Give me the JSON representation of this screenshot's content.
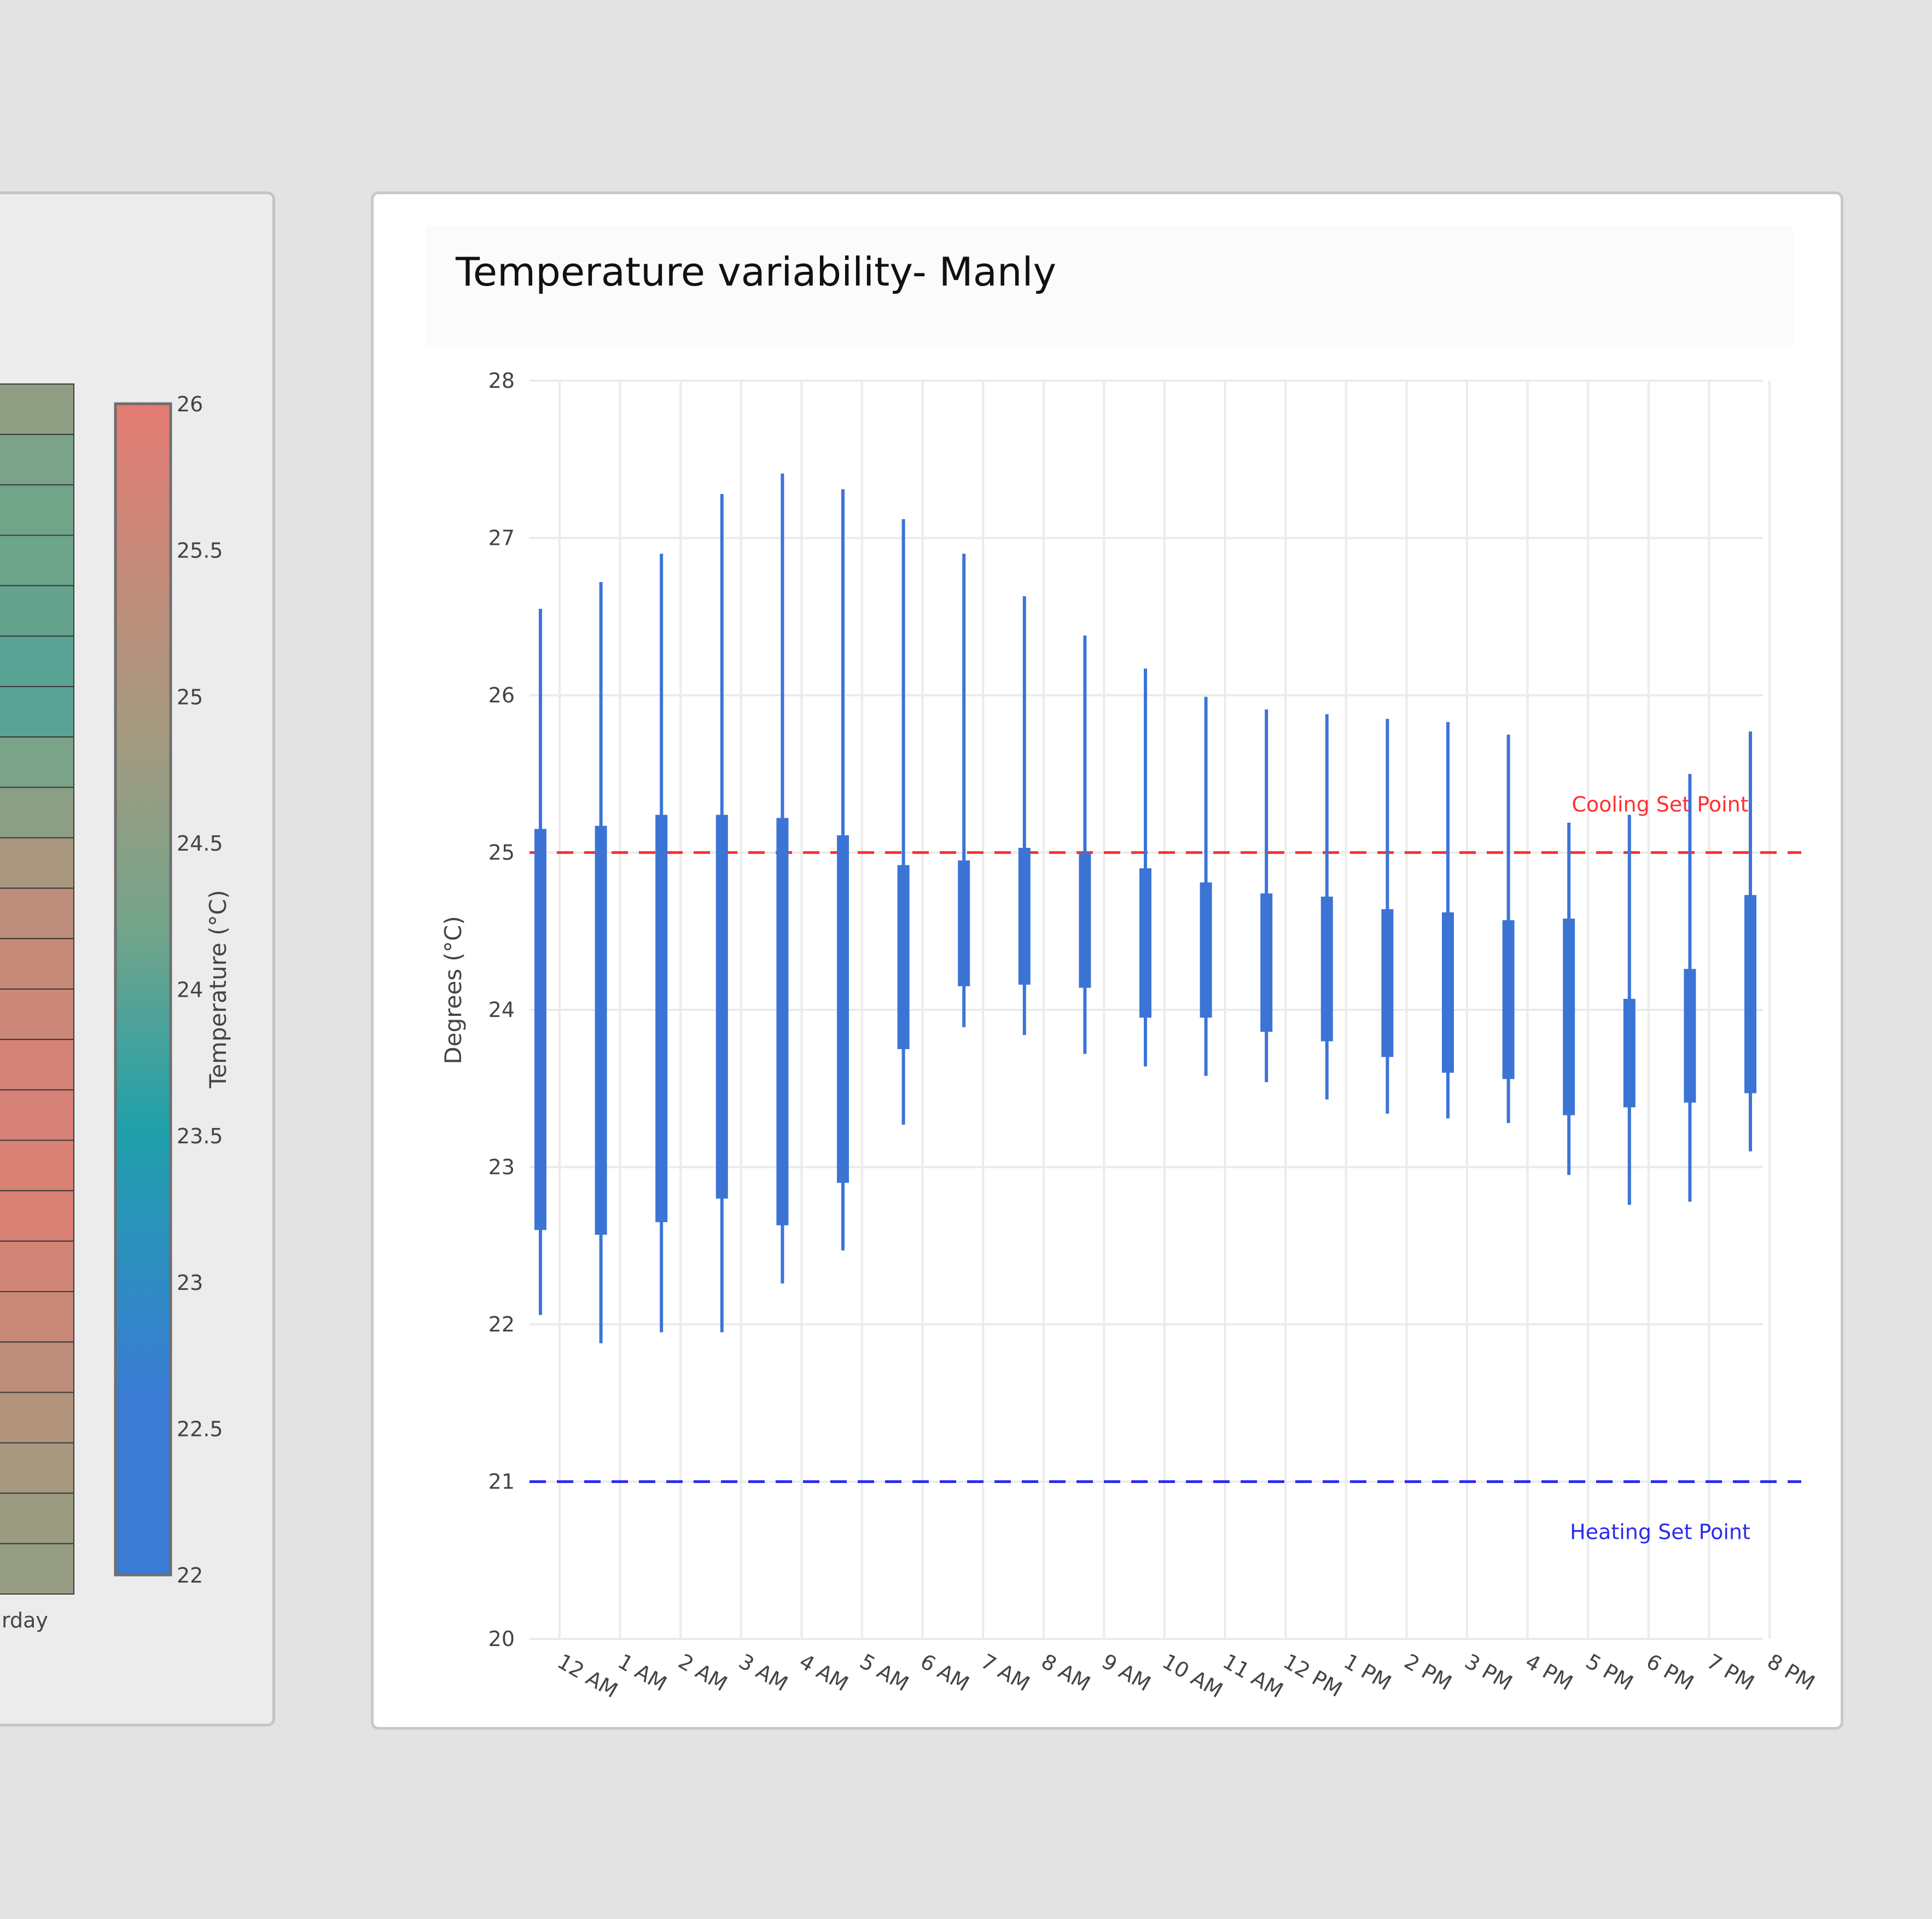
{
  "left_panel": {
    "partial_label": "rday",
    "colorbar": {
      "title": "Temperature (°C)",
      "ticks": [
        22,
        22.5,
        23,
        23.5,
        24,
        24.5,
        25,
        25.5,
        26
      ],
      "min": 22,
      "max": 26,
      "colorscale": [
        {
          "t": 0.0,
          "color": "#3a7bd5"
        },
        {
          "t": 0.15,
          "color": "#3a7bd5"
        },
        {
          "t": 0.38,
          "color": "#20a0ab"
        },
        {
          "t": 0.55,
          "color": "#72a48a"
        },
        {
          "t": 0.72,
          "color": "#a59a80"
        },
        {
          "t": 1.0,
          "color": "#e57b73"
        }
      ]
    },
    "heatmap_cells": [
      24.6,
      24.3,
      24.2,
      24.15,
      24.1,
      24.0,
      24.0,
      24.3,
      24.55,
      24.95,
      25.3,
      25.45,
      25.55,
      25.7,
      25.75,
      25.8,
      25.8,
      25.65,
      25.5,
      25.3,
      25.1,
      24.9,
      24.75,
      24.7
    ]
  },
  "chart_data": {
    "type": "box",
    "title": "Temperature variability- Manly",
    "ylabel": "Degrees (°C)",
    "ylim": [
      20,
      28
    ],
    "yticks": [
      20,
      21,
      22,
      23,
      24,
      25,
      26,
      27,
      28
    ],
    "grid": true,
    "color": "#3c74d6",
    "categories": [
      "12 AM",
      "1 AM",
      "2 AM",
      "3 AM",
      "4 AM",
      "5 AM",
      "6 AM",
      "7 AM",
      "8 AM",
      "9 AM",
      "10 AM",
      "11 AM",
      "12 PM",
      "1 PM",
      "2 PM",
      "3 PM",
      "4 PM",
      "5 PM",
      "6 PM",
      "7 PM",
      "8 PM"
    ],
    "boxes": [
      {
        "min": 22.06,
        "q1": 22.6,
        "q3": 25.15,
        "max": 26.55
      },
      {
        "min": 21.88,
        "q1": 22.57,
        "q3": 25.17,
        "max": 26.72
      },
      {
        "min": 21.95,
        "q1": 22.65,
        "q3": 25.24,
        "max": 26.9
      },
      {
        "min": 21.95,
        "q1": 22.8,
        "q3": 25.24,
        "max": 27.28
      },
      {
        "min": 22.26,
        "q1": 22.63,
        "q3": 25.22,
        "max": 27.41
      },
      {
        "min": 22.47,
        "q1": 22.9,
        "q3": 25.11,
        "max": 27.31
      },
      {
        "min": 23.27,
        "q1": 23.75,
        "q3": 24.92,
        "max": 27.12
      },
      {
        "min": 23.89,
        "q1": 24.15,
        "q3": 24.95,
        "max": 26.9
      },
      {
        "min": 23.84,
        "q1": 24.16,
        "q3": 25.03,
        "max": 26.63
      },
      {
        "min": 23.72,
        "q1": 24.14,
        "q3": 25.0,
        "max": 26.38
      },
      {
        "min": 23.64,
        "q1": 23.95,
        "q3": 24.9,
        "max": 26.17
      },
      {
        "min": 23.58,
        "q1": 23.95,
        "q3": 24.81,
        "max": 25.99
      },
      {
        "min": 23.54,
        "q1": 23.86,
        "q3": 24.74,
        "max": 25.91
      },
      {
        "min": 23.43,
        "q1": 23.8,
        "q3": 24.72,
        "max": 25.88
      },
      {
        "min": 23.34,
        "q1": 23.7,
        "q3": 24.64,
        "max": 25.85
      },
      {
        "min": 23.31,
        "q1": 23.6,
        "q3": 24.62,
        "max": 25.83
      },
      {
        "min": 23.28,
        "q1": 23.56,
        "q3": 24.57,
        "max": 25.75
      },
      {
        "min": 22.95,
        "q1": 23.33,
        "q3": 24.58,
        "max": 25.19
      },
      {
        "min": 22.76,
        "q1": 23.38,
        "q3": 24.07,
        "max": 25.24
      },
      {
        "min": 22.78,
        "q1": 23.41,
        "q3": 24.26,
        "max": 25.5
      },
      {
        "min": 23.1,
        "q1": 23.47,
        "q3": 24.73,
        "max": 25.77
      }
    ],
    "reference_lines": [
      {
        "name": "Cooling Set Point",
        "y": 25,
        "color": "#ff3030"
      },
      {
        "name": "Heating Set Point",
        "y": 21,
        "color": "#2b2bf0"
      }
    ]
  }
}
